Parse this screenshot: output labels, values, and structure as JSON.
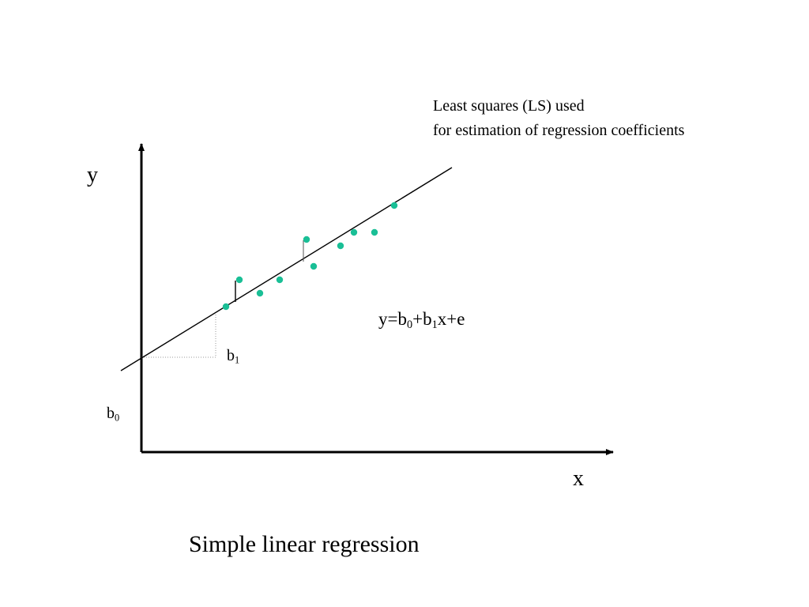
{
  "slide": {
    "note_lines": [
      "Least squares (LS) used",
      "for estimation of regression coefficients"
    ],
    "y_axis_label": "y",
    "x_axis_label": "x",
    "equation": {
      "parts": [
        "y=b",
        "0",
        "+b",
        "1",
        "x+e"
      ]
    },
    "b1_label": {
      "base": "b",
      "sub": "1"
    },
    "b0_label": {
      "base": "b",
      "sub": "0"
    },
    "caption": "Simple linear regression"
  },
  "colors": {
    "point": "#1abf96",
    "line": "#000000",
    "guide": "#9a9a9a"
  }
}
